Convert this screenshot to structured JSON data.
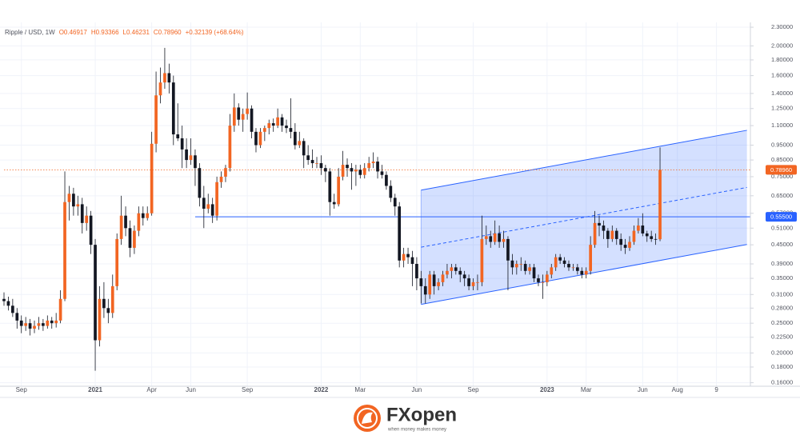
{
  "chart_data": {
    "type": "candlestick",
    "header": {
      "symbol": "Ripple / USD, 1W",
      "fields": [
        "O0.46917",
        "H0.93366",
        "L0.46231",
        "C0.78960",
        "+0.32139 (+68.64%)"
      ]
    },
    "categories": [
      null,
      null,
      null,
      null,
      "Sep",
      null,
      null,
      null,
      null,
      null,
      null,
      null,
      null,
      null,
      null,
      null,
      null,
      null,
      null,
      null,
      null,
      "2021",
      null,
      null,
      null,
      null,
      null,
      null,
      null,
      null,
      null,
      null,
      null,
      null,
      "Apr",
      null,
      null,
      null,
      null,
      null,
      null,
      null,
      null,
      "Jun",
      null,
      null,
      null,
      null,
      null,
      null,
      null,
      null,
      null,
      null,
      null,
      null,
      "Sep",
      null,
      null,
      null,
      null,
      null,
      null,
      null,
      null,
      null,
      null,
      null,
      null,
      null,
      null,
      null,
      null,
      "2022",
      null,
      null,
      null,
      null,
      null,
      null,
      null,
      null,
      "Mar",
      null,
      null,
      null,
      null,
      null,
      null,
      null,
      null,
      null,
      null,
      null,
      null,
      "Jun",
      null,
      null,
      null,
      null,
      null,
      null,
      null,
      null,
      null,
      null,
      null,
      null,
      "Sep",
      null,
      null,
      null,
      null,
      null,
      null,
      null,
      null,
      null,
      null,
      null,
      null,
      null,
      null,
      null,
      null,
      "2023",
      null,
      null,
      null,
      null,
      null,
      null,
      null,
      null,
      "Mar",
      null,
      null,
      null,
      null,
      null,
      null,
      null,
      null,
      null,
      null,
      null,
      null,
      "Jun",
      null,
      null,
      null,
      null,
      null,
      null,
      null,
      "Aug",
      null,
      null,
      null,
      null,
      null,
      null,
      null,
      null,
      "9",
      null,
      null,
      null,
      null,
      null,
      null,
      null
    ],
    "open": [
      0.3,
      0.295,
      0.285,
      0.27,
      0.255,
      0.245,
      0.25,
      0.24,
      0.245,
      0.25,
      0.245,
      0.255,
      0.25,
      0.255,
      0.3,
      0.62,
      0.66,
      0.6,
      0.61,
      0.53,
      0.56,
      0.45,
      0.22,
      0.3,
      0.28,
      0.27,
      0.33,
      0.47,
      0.56,
      0.51,
      0.44,
      0.5,
      0.57,
      0.55,
      0.57,
      0.96,
      1.38,
      1.52,
      1.63,
      1.52,
      1.03,
      1.0,
      0.92,
      0.85,
      0.88,
      0.8,
      0.64,
      0.59,
      0.61,
      0.56,
      0.72,
      0.75,
      0.8,
      1.1,
      1.26,
      1.15,
      1.2,
      1.25,
      1.05,
      0.95,
      1.05,
      1.08,
      1.12,
      1.1,
      1.17,
      1.1,
      1.08,
      1.05,
      0.95,
      0.98,
      0.88,
      0.85,
      0.83,
      0.83,
      0.8,
      0.78,
      0.62,
      0.61,
      0.75,
      0.82,
      0.8,
      0.78,
      0.79,
      0.76,
      0.8,
      0.83,
      0.84,
      0.78,
      0.76,
      0.7,
      0.64,
      0.6,
      0.4,
      0.42,
      0.41,
      0.39,
      0.35,
      0.33,
      0.31,
      0.36,
      0.33,
      0.34,
      0.36,
      0.37,
      0.38,
      0.37,
      0.36,
      0.35,
      0.33,
      0.34,
      0.34,
      0.47,
      0.48,
      0.46,
      0.49,
      0.46,
      0.47,
      0.4,
      0.38,
      0.39,
      0.39,
      0.37,
      0.38,
      0.35,
      0.34,
      0.34,
      0.36,
      0.38,
      0.41,
      0.4,
      0.39,
      0.38,
      0.38,
      0.37,
      0.36,
      0.37,
      0.45,
      0.53,
      0.52,
      0.5,
      0.47,
      0.5,
      0.47,
      0.45,
      0.44,
      0.46,
      0.5,
      0.52,
      0.49,
      0.48,
      0.47,
      0.46917,
      null,
      null,
      null,
      null,
      null,
      null,
      null,
      null,
      null,
      null,
      null,
      null,
      null,
      null,
      null,
      null,
      null,
      null,
      null,
      null
    ],
    "high": [
      0.315,
      0.305,
      0.3,
      0.28,
      0.265,
      0.262,
      0.258,
      0.255,
      0.262,
      0.258,
      0.265,
      0.262,
      0.27,
      0.32,
      0.78,
      0.7,
      0.69,
      0.65,
      0.64,
      0.6,
      0.58,
      0.47,
      0.33,
      0.34,
      0.3,
      0.36,
      0.49,
      0.65,
      0.6,
      0.54,
      0.52,
      0.6,
      0.6,
      0.6,
      1.05,
      1.65,
      1.7,
      1.97,
      1.75,
      1.6,
      1.3,
      1.1,
      1.0,
      1.0,
      0.92,
      0.83,
      0.7,
      0.66,
      0.64,
      0.75,
      0.78,
      0.82,
      1.2,
      1.4,
      1.3,
      1.25,
      1.41,
      1.28,
      1.08,
      1.08,
      1.1,
      1.15,
      1.16,
      1.25,
      1.2,
      1.15,
      1.35,
      1.12,
      1.05,
      1.0,
      0.95,
      0.92,
      0.87,
      0.88,
      0.82,
      0.8,
      0.66,
      0.8,
      0.91,
      0.86,
      0.83,
      0.82,
      0.82,
      0.83,
      0.87,
      0.9,
      0.87,
      0.82,
      0.78,
      0.73,
      0.66,
      0.62,
      0.44,
      0.44,
      0.43,
      0.41,
      0.37,
      0.35,
      0.37,
      0.37,
      0.35,
      0.37,
      0.39,
      0.39,
      0.39,
      0.38,
      0.37,
      0.36,
      0.35,
      0.36,
      0.56,
      0.52,
      0.5,
      0.54,
      0.52,
      0.5,
      0.48,
      0.42,
      0.4,
      0.41,
      0.4,
      0.39,
      0.39,
      0.36,
      0.36,
      0.37,
      0.39,
      0.42,
      0.42,
      0.41,
      0.4,
      0.39,
      0.39,
      0.38,
      0.38,
      0.48,
      0.58,
      0.56,
      0.54,
      0.51,
      0.52,
      0.51,
      0.49,
      0.47,
      0.48,
      0.52,
      0.55,
      0.57,
      0.5,
      0.5,
      0.49,
      0.93366,
      null,
      null,
      null,
      null,
      null,
      null,
      null,
      null,
      null,
      null,
      null,
      null,
      null,
      null,
      null,
      null,
      null,
      null,
      null,
      null
    ],
    "low": [
      0.285,
      0.275,
      0.262,
      0.24,
      0.232,
      0.236,
      0.228,
      0.232,
      0.238,
      0.236,
      0.24,
      0.24,
      0.242,
      0.25,
      0.295,
      0.54,
      0.56,
      0.56,
      0.49,
      0.5,
      0.42,
      0.175,
      0.21,
      0.26,
      0.25,
      0.26,
      0.32,
      0.45,
      0.48,
      0.41,
      0.42,
      0.48,
      0.52,
      0.54,
      0.56,
      0.9,
      1.3,
      1.45,
      1.4,
      0.95,
      0.98,
      0.8,
      0.8,
      0.82,
      0.7,
      0.6,
      0.51,
      0.57,
      0.53,
      0.54,
      0.69,
      0.72,
      0.78,
      1.05,
      1.1,
      1.05,
      1.15,
      1.0,
      0.9,
      0.93,
      0.98,
      1.03,
      1.05,
      1.08,
      1.05,
      1.04,
      1.0,
      0.92,
      0.93,
      0.8,
      0.82,
      0.8,
      0.8,
      0.76,
      0.72,
      0.56,
      0.59,
      0.6,
      0.73,
      0.75,
      0.68,
      0.7,
      0.74,
      0.74,
      0.78,
      0.8,
      0.74,
      0.74,
      0.68,
      0.62,
      0.56,
      0.38,
      0.38,
      0.39,
      0.33,
      0.32,
      0.29,
      0.29,
      0.3,
      0.31,
      0.32,
      0.33,
      0.35,
      0.35,
      0.36,
      0.34,
      0.33,
      0.32,
      0.32,
      0.32,
      0.33,
      0.45,
      0.44,
      0.45,
      0.44,
      0.44,
      0.32,
      0.36,
      0.36,
      0.37,
      0.36,
      0.36,
      0.34,
      0.33,
      0.3,
      0.33,
      0.35,
      0.37,
      0.39,
      0.38,
      0.37,
      0.37,
      0.36,
      0.35,
      0.35,
      0.36,
      0.44,
      0.48,
      0.47,
      0.44,
      0.46,
      0.45,
      0.43,
      0.42,
      0.43,
      0.45,
      0.49,
      0.48,
      0.46,
      0.46,
      0.45,
      0.46231,
      null,
      null,
      null,
      null,
      null,
      null,
      null,
      null,
      null,
      null,
      null,
      null,
      null,
      null,
      null,
      null,
      null,
      null,
      null,
      null
    ],
    "close": [
      0.295,
      0.285,
      0.27,
      0.255,
      0.245,
      0.25,
      0.24,
      0.245,
      0.25,
      0.245,
      0.255,
      0.25,
      0.255,
      0.3,
      0.62,
      0.66,
      0.6,
      0.61,
      0.53,
      0.56,
      0.45,
      0.22,
      0.3,
      0.28,
      0.27,
      0.33,
      0.47,
      0.56,
      0.51,
      0.44,
      0.5,
      0.57,
      0.55,
      0.57,
      0.96,
      1.38,
      1.52,
      1.63,
      1.52,
      1.03,
      1.0,
      0.92,
      0.85,
      0.88,
      0.8,
      0.64,
      0.59,
      0.61,
      0.56,
      0.72,
      0.75,
      0.8,
      1.1,
      1.26,
      1.15,
      1.2,
      1.25,
      1.05,
      0.95,
      1.05,
      1.08,
      1.12,
      1.1,
      1.17,
      1.1,
      1.08,
      1.05,
      0.95,
      0.98,
      0.88,
      0.85,
      0.83,
      0.83,
      0.8,
      0.78,
      0.62,
      0.61,
      0.75,
      0.82,
      0.8,
      0.78,
      0.79,
      0.76,
      0.8,
      0.83,
      0.84,
      0.78,
      0.76,
      0.7,
      0.64,
      0.6,
      0.4,
      0.42,
      0.41,
      0.39,
      0.35,
      0.33,
      0.31,
      0.36,
      0.33,
      0.34,
      0.36,
      0.37,
      0.38,
      0.37,
      0.36,
      0.35,
      0.33,
      0.34,
      0.34,
      0.47,
      0.48,
      0.46,
      0.49,
      0.46,
      0.47,
      0.4,
      0.38,
      0.39,
      0.39,
      0.37,
      0.38,
      0.35,
      0.34,
      0.34,
      0.36,
      0.38,
      0.41,
      0.4,
      0.39,
      0.38,
      0.38,
      0.37,
      0.36,
      0.37,
      0.45,
      0.53,
      0.52,
      0.5,
      0.47,
      0.5,
      0.47,
      0.45,
      0.44,
      0.46,
      0.5,
      0.52,
      0.49,
      0.48,
      0.47,
      0.46917,
      0.7896,
      null,
      null,
      null,
      null,
      null,
      null,
      null,
      null,
      null,
      null,
      null,
      null,
      null,
      null,
      null,
      null,
      null,
      null,
      null,
      null
    ],
    "up_color": "#f26522",
    "down_color": "#131722",
    "log_scale": true,
    "grid": true,
    "ylim": [
      0.154,
      2.385
    ],
    "yticks": [
      {
        "value": 0.16,
        "label": "0.16000"
      },
      {
        "value": 0.18,
        "label": "0.18000"
      },
      {
        "value": 0.2,
        "label": "0.20000"
      },
      {
        "value": 0.225,
        "label": "0.22500"
      },
      {
        "value": 0.25,
        "label": "0.25000"
      },
      {
        "value": 0.28,
        "label": "0.28000"
      },
      {
        "value": 0.31,
        "label": "0.31000"
      },
      {
        "value": 0.35,
        "label": "0.35000"
      },
      {
        "value": 0.39,
        "label": "0.39000"
      },
      {
        "value": 0.45,
        "label": "0.45000"
      },
      {
        "value": 0.51,
        "label": "0.51000"
      },
      {
        "value": 0.57,
        "label": "0.57000"
      },
      {
        "value": 0.65,
        "label": "0.65000"
      },
      {
        "value": 0.75,
        "label": "0.75000"
      },
      {
        "value": 0.85,
        "label": "0.85000"
      },
      {
        "value": 0.95,
        "label": "0.95000"
      },
      {
        "value": 1.1,
        "label": "1.10000"
      },
      {
        "value": 1.25,
        "label": "1.25000"
      },
      {
        "value": 1.4,
        "label": "1.40000"
      },
      {
        "value": 1.6,
        "label": "1.60000"
      },
      {
        "value": 1.8,
        "label": "1.80000"
      },
      {
        "value": 2.0,
        "label": "2.00000"
      },
      {
        "value": 2.3,
        "label": "2.30000"
      }
    ],
    "price_lines": [
      {
        "value": 0.7896,
        "label": "0.78960",
        "color": "#f26522",
        "dashed": true,
        "from": 0
      },
      {
        "value": 0.555,
        "label": "0.55500",
        "color": "#2962ff",
        "dashed": false,
        "from": 44
      }
    ],
    "channel": {
      "x": [
        96,
        171
      ],
      "upper": [
        0.678,
        1.062
      ],
      "lower": [
        0.288,
        0.451
      ],
      "median": [
        0.442,
        0.692
      ],
      "color": "#2962ff"
    }
  },
  "footer": {
    "brand": "FXopen",
    "tagline": "when money makes money"
  }
}
